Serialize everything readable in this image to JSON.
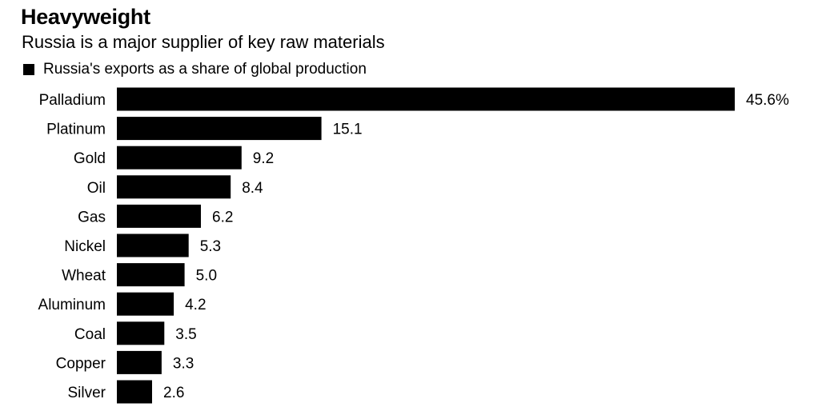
{
  "title": "Heavyweight",
  "subtitle": "Russia is a major supplier of key raw materials",
  "legend": {
    "label": "Russia's exports as a share of global production",
    "color": "#000000"
  },
  "chart_data": {
    "type": "bar",
    "orientation": "horizontal",
    "title": "Heavyweight",
    "subtitle": "Russia is a major supplier of key raw materials",
    "categories": [
      "Palladium",
      "Platinum",
      "Gold",
      "Oil",
      "Gas",
      "Nickel",
      "Wheat",
      "Aluminum",
      "Coal",
      "Copper",
      "Silver"
    ],
    "series": [
      {
        "name": "Russia's exports as a share of global production",
        "values": [
          45.6,
          15.1,
          9.2,
          8.4,
          6.2,
          5.3,
          5.0,
          4.2,
          3.5,
          3.3,
          2.6
        ],
        "color": "#000000"
      }
    ],
    "value_labels": [
      "45.6%",
      "15.1",
      "9.2",
      "8.4",
      "6.2",
      "5.3",
      "5.0",
      "4.2",
      "3.5",
      "3.3",
      "2.6"
    ],
    "xlim": [
      0,
      45.6
    ],
    "grid": false,
    "legend_position": "top-left"
  }
}
